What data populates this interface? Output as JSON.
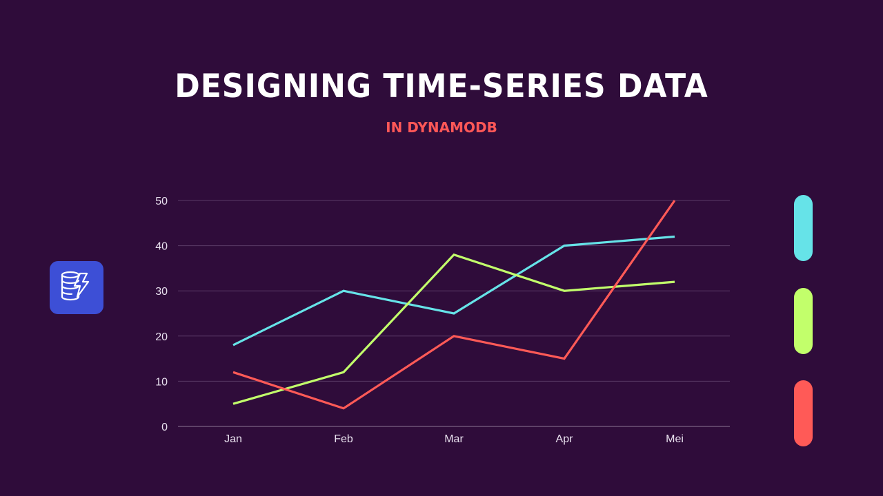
{
  "header": {
    "title": "Designing Time-Series Data",
    "subtitle": "in DynamoDB"
  },
  "logo": {
    "icon": "dynamodb-icon",
    "color": "#3d4fd6"
  },
  "colors": {
    "background": "#2f0c3a",
    "title": "#ffffff",
    "subtitle": "#ff5757",
    "grid": "#5a3a66",
    "axis_text": "#e8e0ee"
  },
  "legend": [
    {
      "color": "#66e3e8"
    },
    {
      "color": "#c2ff6b"
    },
    {
      "color": "#ff5a57"
    }
  ],
  "chart_data": {
    "type": "line",
    "title": "",
    "xlabel": "",
    "ylabel": "",
    "categories": [
      "Jan",
      "Feb",
      "Mar",
      "Apr",
      "Mei"
    ],
    "y_ticks": [
      0,
      10,
      20,
      30,
      40,
      50
    ],
    "ylim": [
      0,
      50
    ],
    "grid": true,
    "legend_position": "right (color swatches only, no labels)",
    "series": [
      {
        "name": "",
        "color": "#66e3e8",
        "values": [
          18,
          30,
          25,
          40,
          42
        ]
      },
      {
        "name": "",
        "color": "#c2ff6b",
        "values": [
          5,
          12,
          38,
          30,
          32
        ]
      },
      {
        "name": "",
        "color": "#ff5a57",
        "values": [
          12,
          4,
          20,
          15,
          50
        ]
      }
    ]
  }
}
